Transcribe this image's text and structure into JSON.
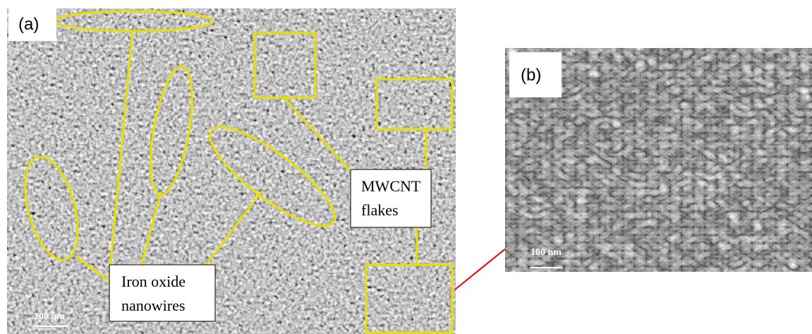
{
  "panels": [
    {
      "label": "(a)",
      "scale_bar": "200 nm",
      "annotations": [
        {
          "lines": [
            "Iron oxide",
            "nanowires"
          ]
        },
        {
          "lines": [
            "MWCNT",
            "flakes"
          ]
        }
      ]
    },
    {
      "label": "(b)",
      "scale_bar": "100 nm"
    }
  ]
}
